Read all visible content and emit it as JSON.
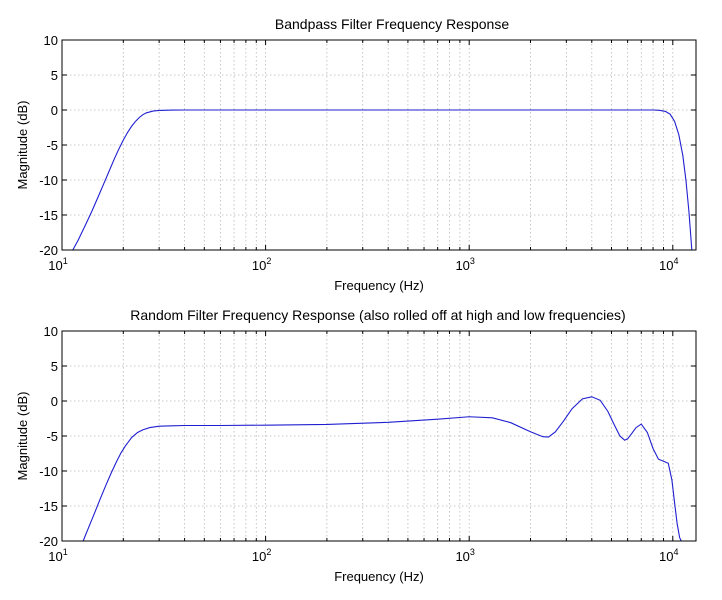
{
  "chart_data": [
    {
      "type": "line",
      "title": "Bandpass Filter Frequency Response",
      "xlabel": "Frequency (Hz)",
      "ylabel": "Magnitude (dB)",
      "xscale": "log",
      "xlim": [
        10,
        13000
      ],
      "ylim": [
        -20,
        10
      ],
      "yticks": [
        "-20",
        "-15",
        "-10",
        "-5",
        "0",
        "5",
        "10"
      ],
      "xticks": [
        {
          "base": "10",
          "exp": "1"
        },
        {
          "base": "10",
          "exp": "2"
        },
        {
          "base": "10",
          "exp": "3"
        },
        {
          "base": "10",
          "exp": "4"
        }
      ],
      "grid": true,
      "color": "#1f1fd0",
      "series": [
        {
          "x": [
            11.3,
            12,
            13,
            14,
            15,
            16,
            17,
            18,
            19,
            20,
            21,
            22,
            23,
            24,
            25,
            26,
            28,
            30,
            35,
            40,
            60,
            100,
            300,
            1000,
            3000,
            6000,
            8000,
            8600,
            9200,
            9700,
            10200,
            10700,
            11200,
            11600,
            12000,
            12400
          ],
          "y": [
            -20,
            -18.6,
            -16.5,
            -14.5,
            -12.5,
            -10.6,
            -8.8,
            -7.1,
            -5.6,
            -4.3,
            -3.2,
            -2.3,
            -1.6,
            -1.05,
            -0.65,
            -0.4,
            -0.15,
            -0.06,
            -0.01,
            0,
            0,
            0,
            0,
            0,
            0,
            0,
            0,
            -0.05,
            -0.2,
            -0.6,
            -1.6,
            -3.5,
            -6.5,
            -10,
            -14.5,
            -20
          ]
        }
      ]
    },
    {
      "type": "line",
      "title": "Random Filter Frequency Response (also rolled off at high and low frequencies)",
      "xlabel": "Frequency (Hz)",
      "ylabel": "Magnitude (dB)",
      "xscale": "log",
      "xlim": [
        10,
        13000
      ],
      "ylim": [
        -20,
        10
      ],
      "yticks": [
        "-20",
        "-15",
        "-10",
        "-5",
        "0",
        "5",
        "10"
      ],
      "xticks": [
        {
          "base": "10",
          "exp": "1"
        },
        {
          "base": "10",
          "exp": "2"
        },
        {
          "base": "10",
          "exp": "3"
        },
        {
          "base": "10",
          "exp": "4"
        }
      ],
      "grid": true,
      "color": "#1f1fd0",
      "series": [
        {
          "x": [
            12.7,
            13.5,
            14.5,
            15.5,
            16.5,
            17.5,
            18.5,
            19.5,
            20.5,
            22,
            23.5,
            25,
            27,
            30,
            35,
            40,
            60,
            100,
            200,
            400,
            700,
            1000,
            1300,
            1600,
            2000,
            2300,
            2450,
            2650,
            2900,
            3200,
            3600,
            4000,
            4400,
            4800,
            5200,
            5500,
            5800,
            6000,
            6300,
            6600,
            7000,
            7500,
            8000,
            8500,
            9000,
            9500,
            9900,
            10200,
            10500,
            10800,
            11000
          ],
          "y": [
            -20,
            -18.1,
            -15.9,
            -13.8,
            -11.9,
            -10.2,
            -8.7,
            -7.4,
            -6.4,
            -5.2,
            -4.5,
            -4.1,
            -3.8,
            -3.6,
            -3.55,
            -3.5,
            -3.5,
            -3.45,
            -3.35,
            -3.05,
            -2.6,
            -2.25,
            -2.4,
            -3.1,
            -4.4,
            -5.1,
            -5.15,
            -4.4,
            -2.9,
            -1.1,
            0.3,
            0.6,
            0.1,
            -1.5,
            -3.6,
            -5,
            -5.6,
            -5.4,
            -4.6,
            -3.8,
            -3.3,
            -4.5,
            -6.8,
            -8.3,
            -8.6,
            -8.9,
            -11.3,
            -14.5,
            -17.5,
            -19.5,
            -20
          ]
        }
      ]
    }
  ]
}
